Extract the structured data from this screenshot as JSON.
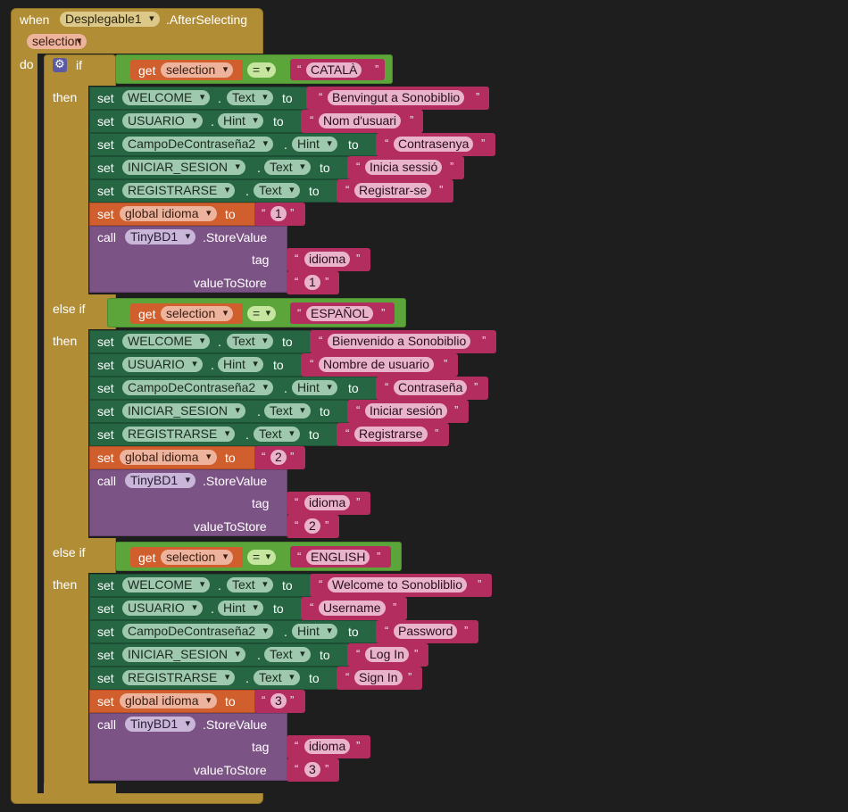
{
  "event": {
    "when": "when",
    "component": "Desplegable1",
    "event_name": ".AfterSelecting",
    "param": "selection",
    "do": "do"
  },
  "keywords": {
    "if": "if",
    "then": "then",
    "else_if": "else if",
    "get": "get",
    "set": "set",
    "to": "to",
    "call": "call",
    "dot": ".",
    "tag": "tag",
    "value_to_store": "valueToStore",
    "store_value": ".StoreValue",
    "eq": "=",
    "open_quote": "“",
    "close_quote": "”"
  },
  "components": {
    "welcome": "WELCOME",
    "usuario": "USUARIO",
    "campo": "CampoDeContraseña2",
    "iniciar": "INICIAR_SESION",
    "registrarse": "REGISTRARSE",
    "global_var": "global idioma",
    "tinydb": "TinyBD1",
    "selection": "selection"
  },
  "properties": {
    "text": "Text",
    "hint": "Hint"
  },
  "branches": [
    {
      "match": "CATALÀ",
      "welcome": "Benvingut a Sonobiblio",
      "usuario": "Nom d'usuari",
      "campo": "Contrasenya",
      "iniciar": "Inicia sessió",
      "registrarse": "Registrar-se",
      "idioma": "1",
      "tag": "idioma",
      "value": "1"
    },
    {
      "match": "ESPAÑOL",
      "welcome": "Bienvenido a Sonobiblio",
      "usuario": "Nombre de usuario",
      "campo": "Contraseña",
      "iniciar": "Iniciar sesión",
      "registrarse": "Registrarse",
      "idioma": "2",
      "tag": "idioma",
      "value": "2"
    },
    {
      "match": "ENGLISH",
      "welcome": "Welcome to Sonobliblio",
      "usuario": "Username",
      "campo": "Password",
      "iniciar": "Log In",
      "registrarse": "Sign In",
      "idioma": "3",
      "tag": "idioma",
      "value": "3"
    }
  ],
  "colors": {
    "canvas": "#1e1e1e",
    "event_block": "#b18e35",
    "control_block": "#b18e35",
    "logic_compare": "#5ba53a",
    "getter": "#d05f2d",
    "setter": "#266643",
    "text_block": "#b32d5e",
    "global_setter": "#d05f2d",
    "procedure_call": "#7c5385"
  },
  "icons": {
    "mutator": "gear-icon"
  }
}
